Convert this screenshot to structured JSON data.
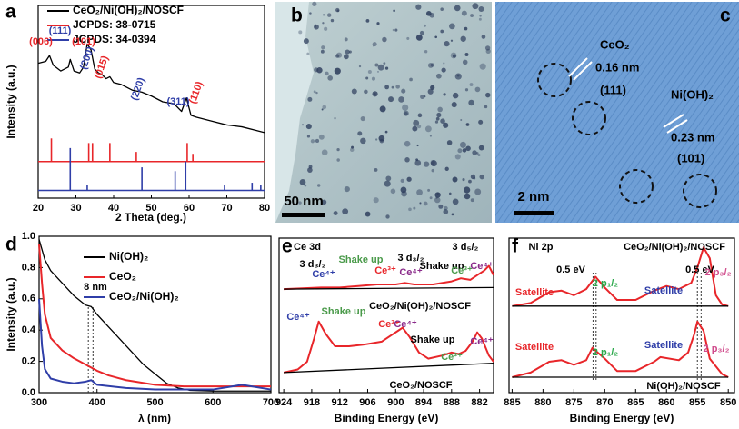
{
  "chart_data": [
    {
      "type": "line",
      "panel_label": "a",
      "x_label": "2 Theta (deg.)",
      "y_label": "Intensity (a.u.)",
      "xlim": [
        20,
        80
      ],
      "xticks": [
        20,
        30,
        40,
        50,
        60,
        70,
        80
      ],
      "ylim": [
        0,
        100
      ],
      "legend": "upper right",
      "series": [
        {
          "name": "CeO₂/Ni(OH)₂/NOSCF",
          "color": "#000000",
          "x": [
            20,
            22,
            23,
            24,
            26,
            28,
            28.5,
            29.5,
            31,
            32,
            33,
            34,
            35,
            36,
            37,
            38,
            39,
            40,
            42,
            45,
            47.5,
            50,
            53,
            56,
            58,
            59.3,
            60.5,
            62,
            66,
            70,
            74,
            78,
            80
          ],
          "values": [
            70,
            71,
            74,
            69,
            66,
            68,
            72,
            66,
            65,
            68,
            80,
            77,
            67,
            65,
            64,
            62,
            63,
            60,
            59,
            56,
            55,
            53,
            50,
            49,
            45,
            52,
            43,
            42,
            40,
            38,
            37,
            35,
            34
          ]
        },
        {
          "name": "JCPDS: 38-0715",
          "color": "#e8262a",
          "type": "stem",
          "baseline": 19,
          "x": [
            23.5,
            33.4,
            34.4,
            39,
            46,
            59.5,
            61
          ],
          "values": [
            31,
            28.6,
            28.6,
            28.6,
            24,
            28.6,
            23
          ]
        },
        {
          "name": "JCPDS: 34-0394",
          "color": "#2f3ea8",
          "type": "stem",
          "baseline": 4,
          "x": [
            28.5,
            33,
            47.5,
            56.3,
            59.1,
            69.4,
            76.7,
            79
          ],
          "values": [
            26,
            7,
            16,
            14,
            19,
            7,
            8,
            7
          ]
        }
      ],
      "annotations": [
        {
          "text": "(006)",
          "color": "#e8262a"
        },
        {
          "text": "(111)",
          "color": "#2f3ea8"
        },
        {
          "text": "(101)",
          "color": "#e8262a"
        },
        {
          "text": "(200)",
          "color": "#2f3ea8"
        },
        {
          "text": "(015)",
          "color": "#e8262a"
        },
        {
          "text": "(220)",
          "color": "#2f3ea8"
        },
        {
          "text": "(311)",
          "color": "#2f3ea8"
        },
        {
          "text": "(110)",
          "color": "#e8262a"
        }
      ]
    },
    {
      "type": "line",
      "panel_label": "d",
      "x_label": "λ (nm)",
      "y_label": "Intensity (a.u.)",
      "xlim": [
        300,
        700
      ],
      "xticks": [
        300,
        400,
        500,
        600,
        700
      ],
      "ylim": [
        0,
        1
      ],
      "yticks": [
        {
          "value": 0,
          "label": "0.0"
        },
        0.2,
        0.4,
        0.6,
        0.8,
        {
          "value": 1,
          "label": "1.0"
        }
      ],
      "legend": "upper right",
      "series": [
        {
          "name": "Ni(OH)₂",
          "color": "#000000",
          "x": [
            300,
            310,
            320,
            340,
            360,
            380,
            390,
            400,
            420,
            450,
            480,
            500,
            520,
            540,
            560,
            600,
            650,
            700
          ],
          "values": [
            0.98,
            0.85,
            0.78,
            0.7,
            0.62,
            0.56,
            0.55,
            0.5,
            0.42,
            0.3,
            0.18,
            0.12,
            0.06,
            0.03,
            0.015,
            0.01,
            0.01,
            0.01
          ]
        },
        {
          "name": "CeO₂",
          "color": "#e8262a",
          "x": [
            300,
            305,
            310,
            320,
            340,
            360,
            380,
            400,
            420,
            450,
            500,
            550,
            600,
            650,
            700
          ],
          "values": [
            0.95,
            0.7,
            0.5,
            0.35,
            0.27,
            0.22,
            0.18,
            0.14,
            0.11,
            0.08,
            0.05,
            0.04,
            0.04,
            0.04,
            0.04
          ]
        },
        {
          "name": "CeO₂/Ni(OH)₂",
          "color": "#2f3ea8",
          "x": [
            300,
            305,
            310,
            320,
            340,
            360,
            380,
            390,
            400,
            450,
            500,
            550,
            600,
            650,
            700
          ],
          "values": [
            0.6,
            0.3,
            0.15,
            0.09,
            0.07,
            0.06,
            0.07,
            0.08,
            0.05,
            0.03,
            0.02,
            0.02,
            0.02,
            0.05,
            0.02
          ]
        }
      ],
      "annotations": [
        {
          "text": "8 nm",
          "color": "#000000"
        }
      ],
      "vlines": [
        385,
        393
      ]
    },
    {
      "type": "line",
      "panel_label": "e",
      "x_label": "Binding Energy (eV)",
      "xlim": [
        925,
        879
      ],
      "xticks": [
        924,
        918,
        912,
        906,
        900,
        894,
        888,
        882
      ],
      "ylim": [
        0,
        100
      ],
      "series": [
        {
          "color": "#e8262a",
          "x": [
            924,
            920,
            916,
            912,
            908,
            904,
            900,
            898,
            896,
            892,
            888,
            886,
            884,
            882,
            881,
            880,
            879
          ],
          "values": [
            67,
            67.5,
            68,
            68,
            69,
            70,
            70,
            71,
            70,
            70,
            72,
            74,
            73,
            77,
            79,
            82,
            76
          ]
        },
        {
          "color": "#000000",
          "x": [
            924,
            879
          ],
          "values": [
            67,
            68
          ]
        },
        {
          "color": "#e8262a",
          "x": [
            924,
            921,
            919,
            917.5,
            916.5,
            915,
            913,
            910,
            907,
            905,
            903,
            901,
            899.5,
            898.5,
            897,
            895,
            893,
            890,
            888,
            886.5,
            885,
            883.5,
            882.5,
            881.5,
            880,
            879
          ],
          "values": [
            13,
            15,
            20,
            35,
            46,
            38,
            30,
            30,
            31,
            32,
            33,
            37,
            40,
            42,
            36,
            26,
            22,
            24,
            26,
            25,
            27,
            33,
            39,
            35,
            24,
            20
          ]
        },
        {
          "color": "#000000",
          "x": [
            924,
            879
          ],
          "values": [
            13,
            19
          ]
        }
      ],
      "annotations": [
        {
          "text": "Ce 3d",
          "color": "#000000"
        },
        {
          "text": "3 d₃/₂",
          "color": "#000000"
        },
        {
          "text": "Shake up",
          "color": "#4a9a4a"
        },
        {
          "text": "3 d₃/₂",
          "color": "#000000"
        },
        {
          "text": "3 d₅/₂",
          "color": "#000000"
        },
        {
          "text": "Ce⁴⁺",
          "color": "#2f3ea8"
        },
        {
          "text": "Ce³⁺",
          "color": "#e8262a"
        },
        {
          "text": "Ce⁴⁺",
          "color": "#8a2a8a"
        },
        {
          "text": "Shake up",
          "color": "#000000"
        },
        {
          "text": "Ce³⁺",
          "color": "#4a9a4a"
        },
        {
          "text": "Ce⁴⁺",
          "color": "#8a2a8a"
        },
        {
          "text": "CeO₂/Ni(OH)₂/NOSCF",
          "color": "#000000"
        },
        {
          "text": "Ce⁴⁺",
          "color": "#2f3ea8"
        },
        {
          "text": "Shake up",
          "color": "#4a9a4a"
        },
        {
          "text": "Ce³⁺",
          "color": "#e8262a"
        },
        {
          "text": "Ce⁴⁺",
          "color": "#8a2a8a"
        },
        {
          "text": "Shake up",
          "color": "#000000"
        },
        {
          "text": "Ce³⁺",
          "color": "#4a9a4a"
        },
        {
          "text": "Ce⁴⁺",
          "color": "#8a2a8a"
        },
        {
          "text": "CeO₂/NOSCF",
          "color": "#000000"
        }
      ]
    },
    {
      "type": "line",
      "panel_label": "f",
      "x_label": "Binding Energy (eV)",
      "xlim": [
        885.5,
        849
      ],
      "xticks": [
        885,
        880,
        875,
        870,
        865,
        860,
        855,
        850
      ],
      "ylim": [
        0,
        100
      ],
      "series": [
        {
          "color": "#e8262a",
          "x": [
            885,
            882,
            879,
            877,
            875,
            873,
            871.5,
            870,
            868,
            865,
            862,
            860,
            858,
            856,
            855,
            854,
            853,
            852,
            851,
            850
          ],
          "values": [
            56,
            58,
            65,
            66,
            63,
            67,
            75,
            68,
            60,
            60,
            66,
            69,
            67,
            71,
            81,
            94,
            87,
            63,
            57,
            56
          ]
        },
        {
          "color": "#000000",
          "x": [
            885,
            850
          ],
          "values": [
            56,
            56
          ]
        },
        {
          "color": "#e8262a",
          "x": [
            885,
            882,
            879,
            877,
            875,
            873,
            872,
            870,
            868,
            865,
            862,
            861,
            858,
            856.5,
            855.5,
            855,
            854,
            853,
            851,
            850
          ],
          "values": [
            10,
            13,
            20,
            21,
            18,
            21,
            29,
            22,
            14,
            14,
            20,
            23,
            21,
            26,
            38,
            46,
            40,
            22,
            12,
            10
          ]
        },
        {
          "color": "#000000",
          "x": [
            885,
            850
          ],
          "values": [
            10,
            10
          ]
        }
      ],
      "annotations": [
        {
          "text": "Ni 2p",
          "color": "#000000"
        },
        {
          "text": "CeO₂/Ni(OH)₂/NOSCF",
          "color": "#000000"
        },
        {
          "text": "0.5 eV",
          "color": "#000000"
        },
        {
          "text": "0.5 eV",
          "color": "#000000"
        },
        {
          "text": "Satellite",
          "color": "#e8262a"
        },
        {
          "text": "2 p₁/₂",
          "color": "#2aa84a"
        },
        {
          "text": "Satellite",
          "color": "#2f3ea8"
        },
        {
          "text": "2 p₃/₂",
          "color": "#d04c8c"
        },
        {
          "text": "Satellite",
          "color": "#e8262a"
        },
        {
          "text": "2 p₁/₂",
          "color": "#2aa84a"
        },
        {
          "text": "Satellite",
          "color": "#2f3ea8"
        },
        {
          "text": "2 p₃/₂",
          "color": "#d04c8c"
        },
        {
          "text": "Ni(OH)₂/NOSCF",
          "color": "#000000"
        }
      ],
      "vlines": [
        871.9,
        871.4,
        855,
        854.4
      ]
    }
  ],
  "images": [
    {
      "panel_label": "b",
      "scale_bar": "50 nm"
    },
    {
      "panel_label": "c",
      "scale_bar": "2 nm",
      "labels": [
        "CeO₂",
        "0.16 nm",
        "(111)",
        "Ni(OH)₂",
        "0.23 nm",
        "(101)"
      ]
    }
  ]
}
